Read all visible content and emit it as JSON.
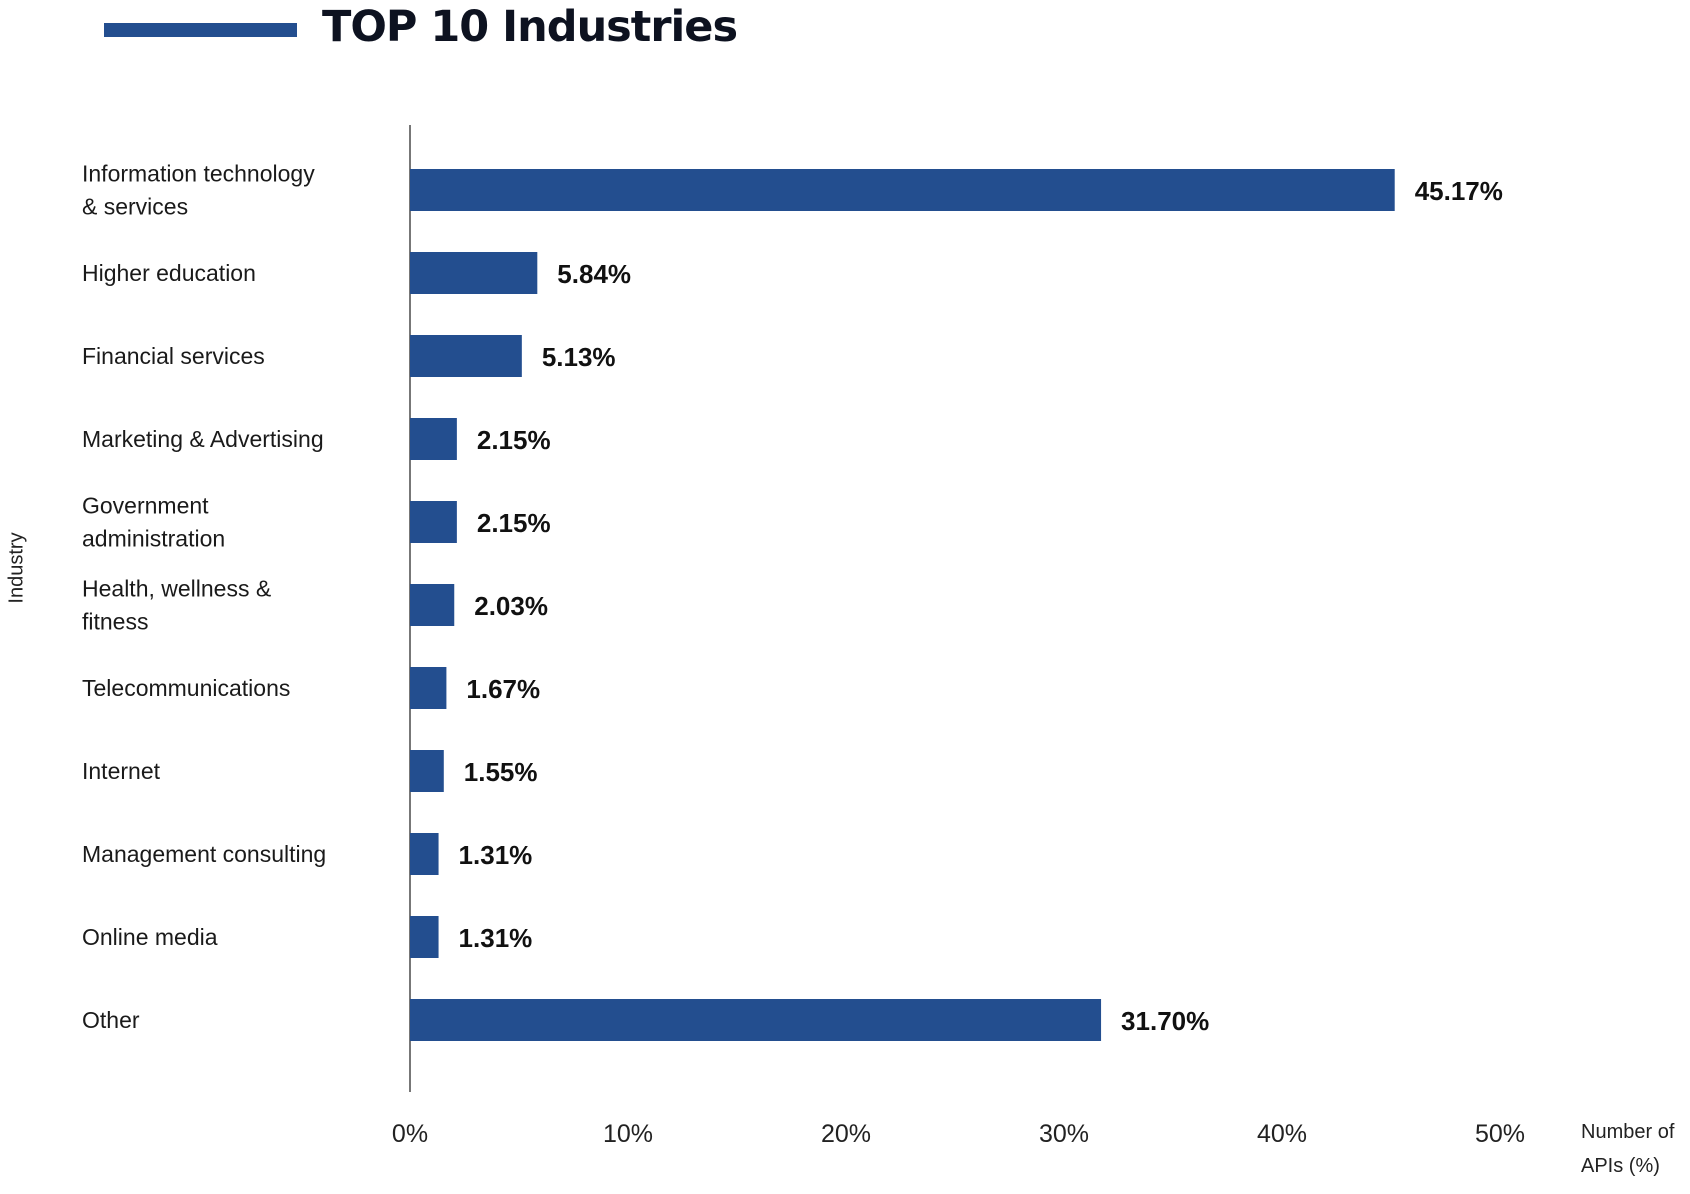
{
  "chart_data": {
    "type": "bar",
    "orientation": "horizontal",
    "title": "TOP 10 Industries",
    "xlabel": "Number of APIs (%)",
    "ylabel": "Industry",
    "xlim": [
      0,
      50
    ],
    "xticks": [
      "0%",
      "10%",
      "20%",
      "30%",
      "40%",
      "50%"
    ],
    "grid": false,
    "legend": "none",
    "categories": [
      "Information technology & services",
      "Higher education",
      "Financial services",
      "Marketing & Advertising",
      "Government administration",
      "Health, wellness & fitness",
      "Telecommunications",
      "Internet",
      "Management consulting",
      "Online media",
      "Other"
    ],
    "category_lines": [
      [
        "Information technology",
        "& services"
      ],
      [
        "Higher education"
      ],
      [
        "Financial services"
      ],
      [
        "Marketing & Advertising"
      ],
      [
        "Government",
        "administration"
      ],
      [
        "Health, wellness &",
        "fitness"
      ],
      [
        "Telecommunications"
      ],
      [
        "Internet"
      ],
      [
        "Management consulting"
      ],
      [
        "Online media"
      ],
      [
        "Other"
      ]
    ],
    "values": [
      45.17,
      5.84,
      5.13,
      2.15,
      2.15,
      2.03,
      1.67,
      1.55,
      1.31,
      1.31,
      31.7
    ],
    "value_labels": [
      "45.17%",
      "5.84%",
      "5.13%",
      "2.15%",
      "2.15%",
      "2.03%",
      "1.67%",
      "1.55%",
      "1.31%",
      "1.31%",
      "31.70%"
    ],
    "colors": {
      "bar": "#234e8f",
      "accent": "#234e8f",
      "axis": "#777777",
      "title": "#0d1220",
      "text": "#111111"
    }
  }
}
